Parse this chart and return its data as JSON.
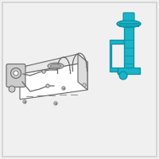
{
  "bg_color": "#f0f0f0",
  "teal": "#1ab4c8",
  "dark_teal": "#0a8fa0",
  "gray": "#999999",
  "light_gray": "#cccccc",
  "dark_gray": "#666666",
  "line_color": "#666666",
  "white": "#ffffff",
  "figsize": [
    2.0,
    2.0
  ],
  "dpi": 100,
  "border_color": "#d0d0d0"
}
